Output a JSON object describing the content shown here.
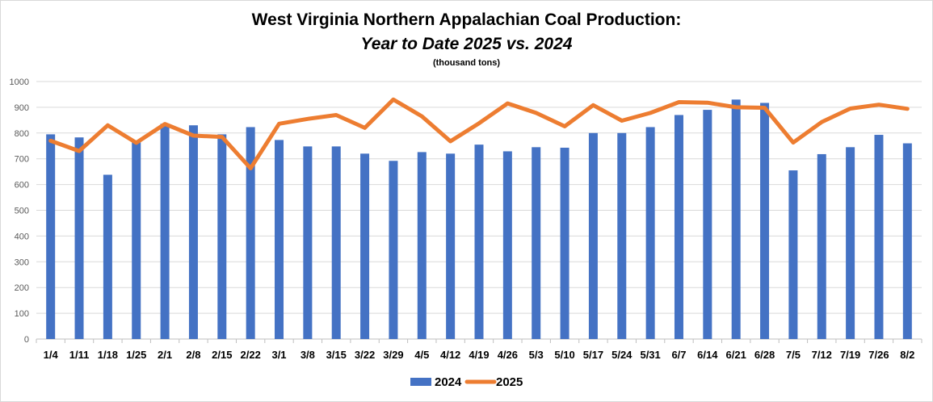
{
  "chart_data": {
    "type": "bar",
    "title": "West Virginia Northern Appalachian Coal Production:",
    "subtitle": "Year to Date 2025 vs. 2024",
    "units": "(thousand tons)",
    "ylim": [
      0,
      1000
    ],
    "yticks": [
      0,
      100,
      200,
      300,
      400,
      500,
      600,
      700,
      800,
      900,
      1000
    ],
    "grid": true,
    "legend_position": "bottom",
    "categories": [
      "1/4",
      "1/11",
      "1/18",
      "1/25",
      "2/1",
      "2/8",
      "2/15",
      "2/22",
      "3/1",
      "3/8",
      "3/15",
      "3/22",
      "3/29",
      "4/5",
      "4/12",
      "4/19",
      "4/26",
      "5/3",
      "5/10",
      "5/17",
      "5/24",
      "5/31",
      "6/7",
      "6/14",
      "6/21",
      "6/28",
      "7/5",
      "7/12",
      "7/19",
      "7/26",
      "8/2"
    ],
    "series": [
      {
        "name": "2024",
        "kind": "bar",
        "color": "#4472c4",
        "values": [
          795,
          783,
          638,
          770,
          836,
          830,
          795,
          823,
          773,
          748,
          748,
          720,
          692,
          726,
          720,
          755,
          729,
          745,
          743,
          800,
          800,
          823,
          870,
          890,
          930,
          917,
          655,
          718,
          745,
          793,
          760
        ]
      },
      {
        "name": "2025",
        "kind": "line",
        "color": "#ed7d31",
        "values": [
          770,
          730,
          830,
          762,
          835,
          790,
          785,
          663,
          836,
          855,
          870,
          820,
          930,
          865,
          768,
          838,
          915,
          878,
          826,
          908,
          848,
          878,
          920,
          918,
          900,
          898,
          763,
          843,
          895,
          910,
          894
        ]
      }
    ]
  }
}
